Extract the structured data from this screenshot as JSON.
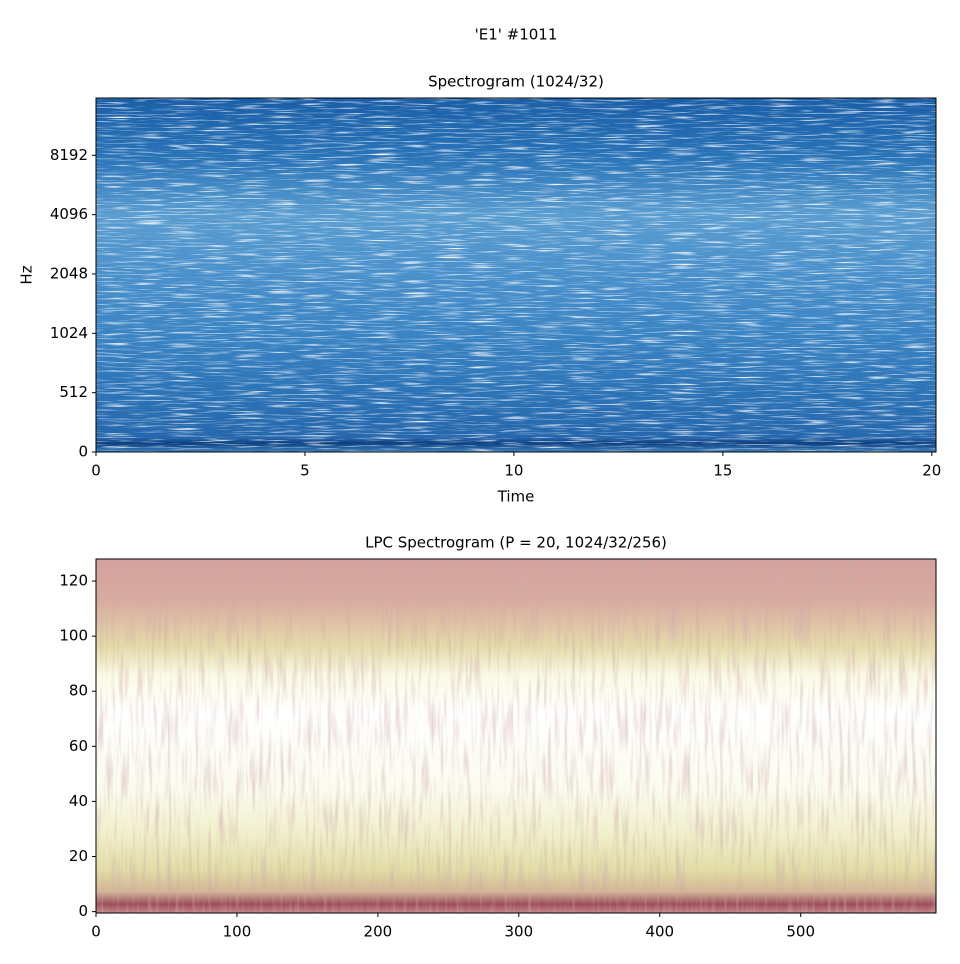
{
  "suptitle": "'E1' #1011",
  "chart_data": [
    {
      "type": "spectrogram",
      "title": "Spectrogram (1024/32)",
      "xlabel": "Time",
      "ylabel": "Hz",
      "xlim": [
        0,
        20.1
      ],
      "xticks": [
        0,
        5,
        10,
        15,
        20
      ],
      "yscale": "symlog",
      "linthresh": 512,
      "ylim": [
        0,
        16000
      ],
      "yticks": [
        0,
        512,
        1024,
        2048,
        4096,
        8192
      ]
    },
    {
      "type": "spectrogram",
      "title": "LPC Spectrogram (P = 20, 1024/32/256)",
      "xlim": [
        0,
        596
      ],
      "xticks": [
        0,
        100,
        200,
        300,
        400,
        500
      ],
      "yscale": "linear",
      "ylim": [
        -0.5,
        128
      ],
      "yticks": [
        0,
        20,
        40,
        60,
        80,
        100,
        120
      ]
    }
  ]
}
